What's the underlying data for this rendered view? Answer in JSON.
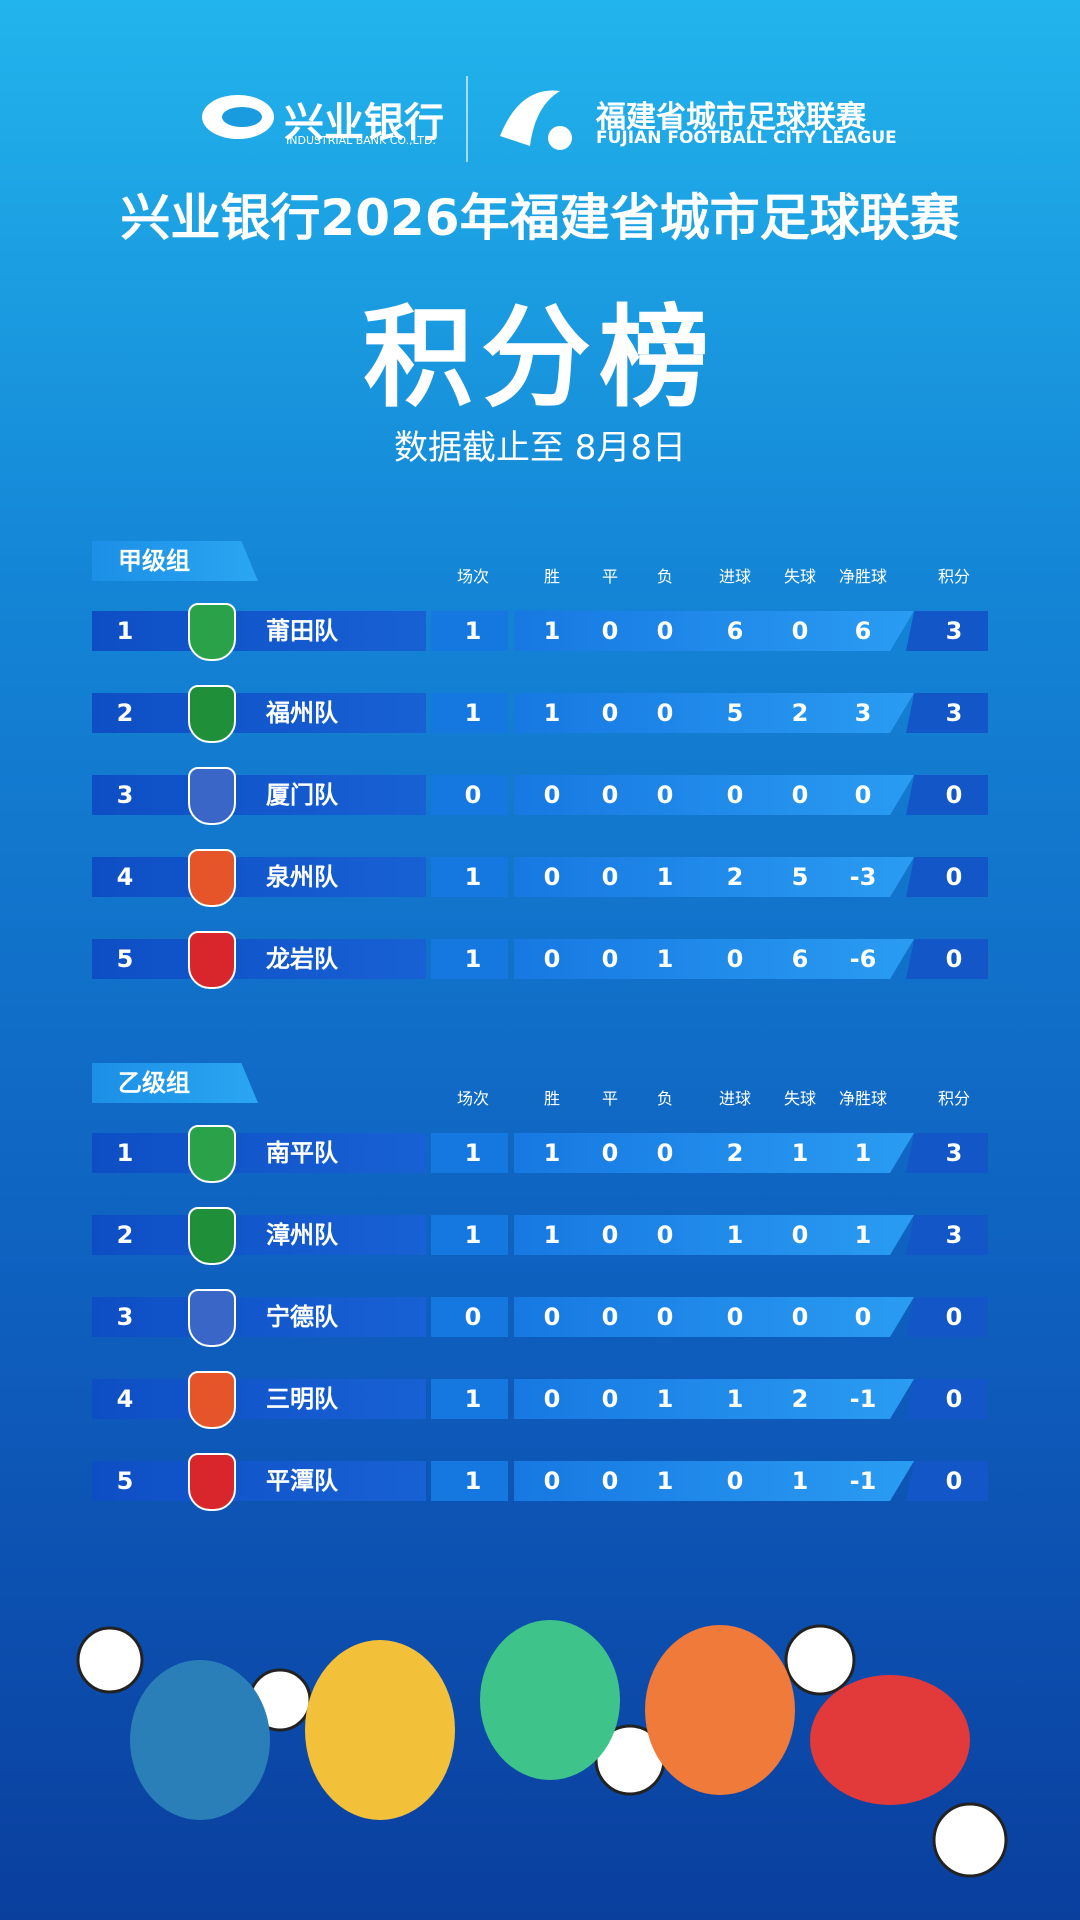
{
  "header": {
    "bank_name": "兴业银行",
    "bank_name_en": "INDUSTRIAL BANK CO.,LTD.",
    "league_name": "福建省城市足球联赛",
    "league_name_en": "FUJIAN FOOTBALL CITY LEAGUE",
    "title": "兴业银行2026年福建省城市足球联赛",
    "subtitle": "积分榜",
    "date_note": "数据截止至 8月8日"
  },
  "groups": [
    {
      "name": "甲级组",
      "columns": [
        "场次",
        "胜",
        "平",
        "负",
        "进球",
        "失球",
        "净胜球",
        "积分"
      ],
      "rows": [
        [
          1,
          "莆田队",
          1,
          1,
          0,
          0,
          6,
          0,
          6,
          3
        ],
        [
          2,
          "福州队",
          1,
          1,
          0,
          0,
          5,
          2,
          3,
          3
        ],
        [
          3,
          "厦门队",
          0,
          0,
          0,
          0,
          0,
          0,
          0,
          0
        ],
        [
          4,
          "泉州队",
          1,
          0,
          0,
          1,
          2,
          5,
          -3,
          0
        ],
        [
          5,
          "龙岩队",
          1,
          0,
          0,
          1,
          0,
          6,
          -6,
          0
        ]
      ]
    },
    {
      "name": "乙级组",
      "columns": [
        "场次",
        "胜",
        "平",
        "负",
        "进球",
        "失球",
        "净胜球",
        "积分"
      ],
      "rows": [
        [
          1,
          "南平队",
          1,
          1,
          0,
          0,
          2,
          1,
          1,
          3
        ],
        [
          2,
          "漳州队",
          1,
          1,
          0,
          0,
          1,
          0,
          1,
          3
        ],
        [
          3,
          "宁德队",
          0,
          0,
          0,
          0,
          0,
          0,
          0,
          0
        ],
        [
          4,
          "三明队",
          1,
          0,
          0,
          1,
          1,
          2,
          -1,
          0
        ],
        [
          5,
          "平潭队",
          1,
          0,
          0,
          1,
          0,
          1,
          -1,
          0
        ]
      ]
    }
  ]
}
